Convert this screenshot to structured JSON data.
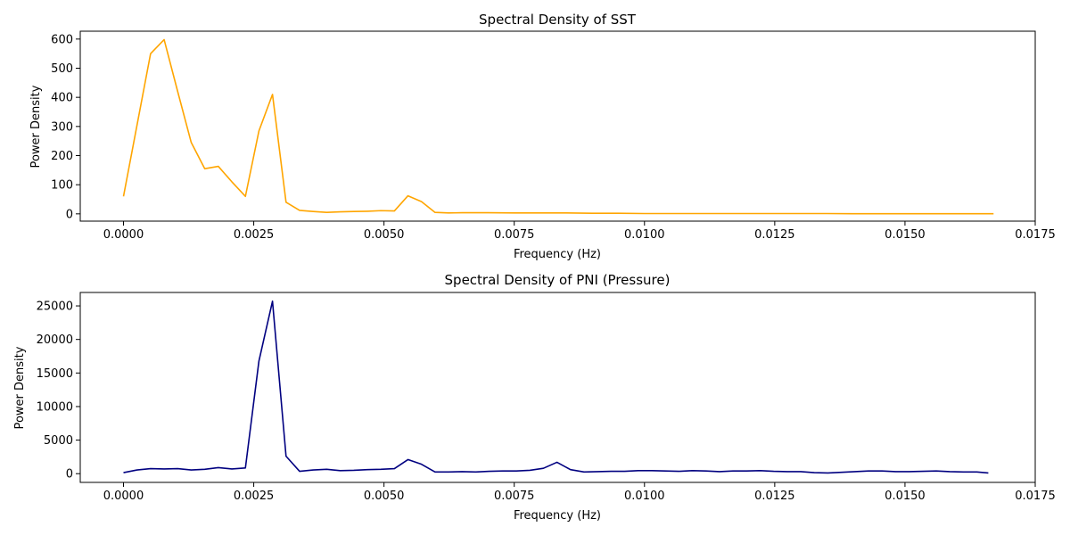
{
  "chart_data": [
    {
      "type": "line",
      "title": "Spectral Density of SST",
      "xlabel": "Frequency (Hz)",
      "ylabel": "Power Density",
      "xlim": [
        -0.00083,
        0.0175
      ],
      "ylim": [
        -25,
        627
      ],
      "xticks": [
        0.0,
        0.0025,
        0.005,
        0.0075,
        0.01,
        0.0125,
        0.015,
        0.0175
      ],
      "xtick_labels": [
        "0.0000",
        "0.0025",
        "0.0050",
        "0.0075",
        "0.0100",
        "0.0125",
        "0.0150",
        "0.0175"
      ],
      "yticks": [
        0,
        100,
        200,
        300,
        400,
        500,
        600
      ],
      "ytick_labels": [
        "0",
        "100",
        "200",
        "300",
        "400",
        "500",
        "600"
      ],
      "grid": false,
      "series": [
        {
          "color": "#ffa500",
          "x": [
            0.0,
            0.00052,
            0.00078,
            0.00104,
            0.0013,
            0.00156,
            0.00182,
            0.00208,
            0.00234,
            0.0026,
            0.00286,
            0.00312,
            0.00338,
            0.00364,
            0.0039,
            0.00416,
            0.00442,
            0.00468,
            0.00494,
            0.0052,
            0.00546,
            0.00572,
            0.00598,
            0.00624,
            0.0065,
            0.007,
            0.0075,
            0.008,
            0.0085,
            0.009,
            0.0095,
            0.01,
            0.0105,
            0.011,
            0.0115,
            0.012,
            0.0125,
            0.013,
            0.0135,
            0.014,
            0.0145,
            0.015,
            0.0155,
            0.016,
            0.0167
          ],
          "values": [
            60,
            550,
            598,
            420,
            245,
            155,
            163,
            110,
            60,
            285,
            410,
            40,
            12,
            8,
            5,
            7,
            8,
            9,
            11,
            10,
            62,
            42,
            5,
            3,
            4,
            4,
            3,
            3,
            3,
            2,
            2,
            1,
            1,
            1,
            1,
            1,
            1,
            1,
            1,
            0.5,
            0.5,
            0.5,
            0.5,
            0.5,
            0.5
          ]
        }
      ]
    },
    {
      "type": "line",
      "title": "Spectral Density of PNI (Pressure)",
      "xlabel": "Frequency (Hz)",
      "ylabel": "Power Density",
      "xlim": [
        -0.00083,
        0.0175
      ],
      "ylim": [
        -1300,
        27000
      ],
      "xticks": [
        0.0,
        0.0025,
        0.005,
        0.0075,
        0.01,
        0.0125,
        0.015,
        0.0175
      ],
      "xtick_labels": [
        "0.0000",
        "0.0025",
        "0.0050",
        "0.0075",
        "0.0100",
        "0.0125",
        "0.0150",
        "0.0175"
      ],
      "yticks": [
        0,
        5000,
        10000,
        15000,
        20000,
        25000
      ],
      "ytick_labels": [
        "0",
        "5000",
        "10000",
        "15000",
        "20000",
        "25000"
      ],
      "grid": false,
      "series": [
        {
          "color": "#000080",
          "x": [
            0.0,
            0.00026,
            0.00052,
            0.00078,
            0.00104,
            0.0013,
            0.00156,
            0.00182,
            0.00208,
            0.00234,
            0.0026,
            0.00286,
            0.00312,
            0.00338,
            0.00364,
            0.0039,
            0.00416,
            0.00442,
            0.00468,
            0.00494,
            0.0052,
            0.00546,
            0.00572,
            0.00598,
            0.00624,
            0.0065,
            0.00676,
            0.00702,
            0.00728,
            0.00754,
            0.0078,
            0.00806,
            0.00832,
            0.00858,
            0.00884,
            0.0091,
            0.00936,
            0.00962,
            0.00988,
            0.01014,
            0.0104,
            0.01066,
            0.01092,
            0.01118,
            0.01144,
            0.0117,
            0.01196,
            0.01222,
            0.01248,
            0.01274,
            0.013,
            0.01326,
            0.01352,
            0.01378,
            0.01404,
            0.0143,
            0.01456,
            0.01482,
            0.01508,
            0.01534,
            0.0156,
            0.01586,
            0.01612,
            0.01638,
            0.0166
          ],
          "values": [
            150,
            550,
            750,
            700,
            750,
            550,
            650,
            900,
            700,
            850,
            16800,
            25700,
            2600,
            350,
            550,
            650,
            450,
            500,
            600,
            650,
            750,
            2100,
            1400,
            250,
            250,
            300,
            250,
            350,
            400,
            400,
            500,
            800,
            1700,
            600,
            250,
            300,
            350,
            350,
            450,
            450,
            400,
            350,
            450,
            400,
            300,
            400,
            400,
            450,
            350,
            300,
            300,
            150,
            100,
            200,
            300,
            400,
            400,
            300,
            300,
            350,
            400,
            300,
            250,
            250,
            100
          ]
        }
      ]
    }
  ]
}
